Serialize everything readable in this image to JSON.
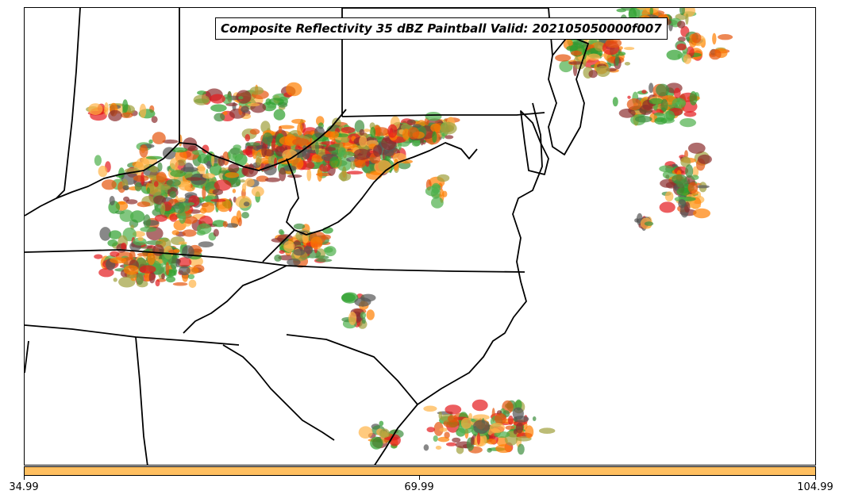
{
  "map": {
    "title": "Composite Reflectivity 35 dBZ Paintball Valid: 202105050000f007",
    "palette": [
      "#e41a1c",
      "#ff7f00",
      "#e6550d",
      "#4daf4a",
      "#2ca02c",
      "#8b2e2e",
      "#a0a03c",
      "#555555",
      "#ffb347",
      "#3e8e3e"
    ],
    "boundary_color": "#000000"
  },
  "colorbar": {
    "color": "#ffbf60",
    "ticks": [
      "34.99",
      "69.99",
      "104.99"
    ]
  }
}
